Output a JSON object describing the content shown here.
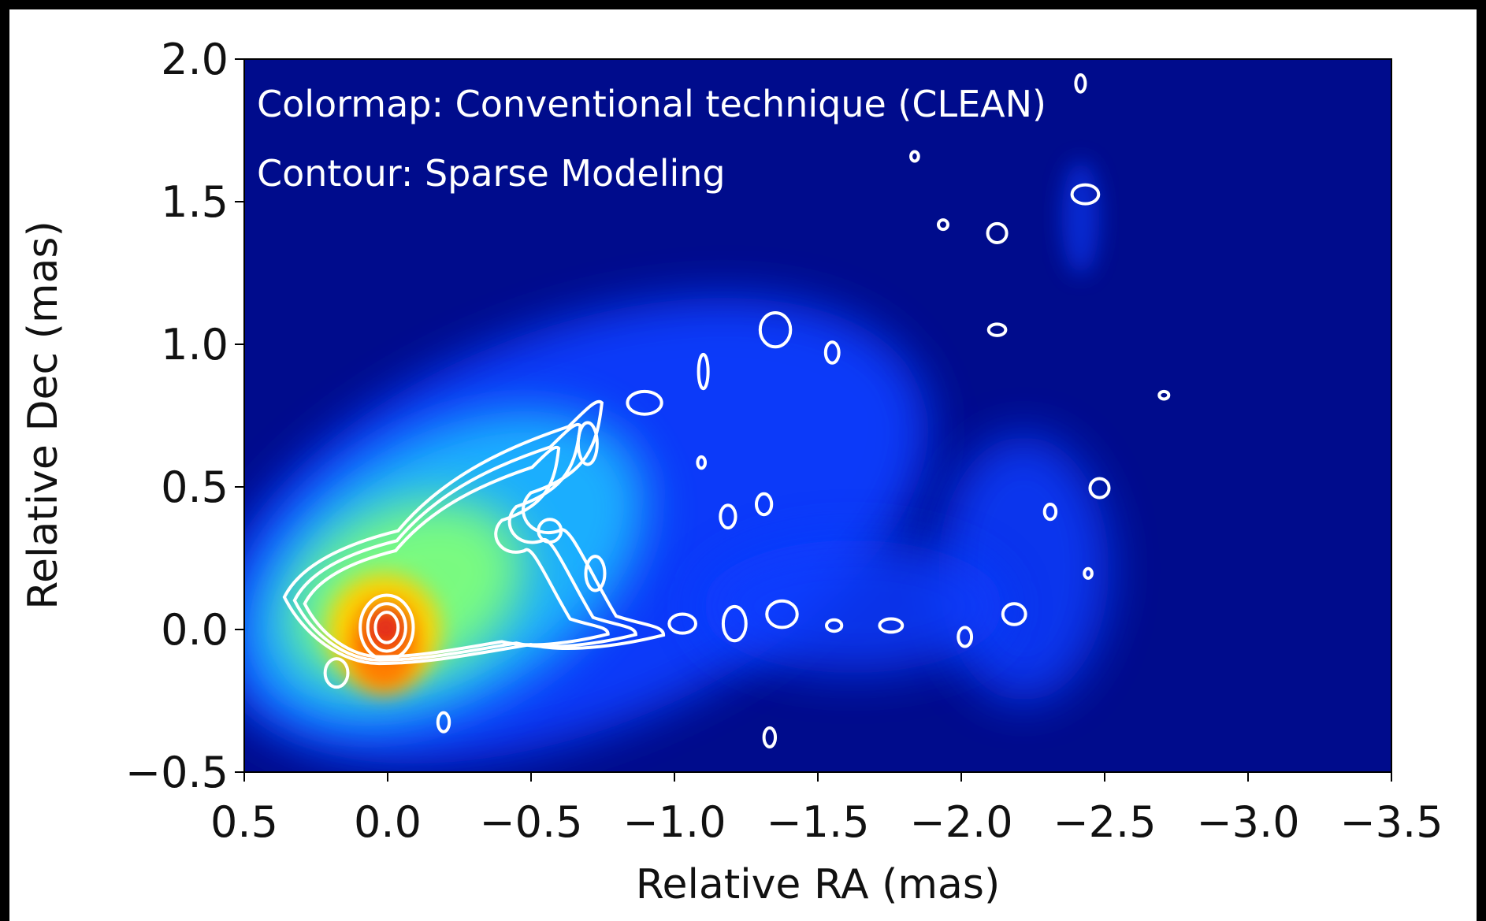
{
  "chart_data": {
    "type": "image",
    "annotations": [
      "Colormap: Conventional technique (CLEAN)",
      "Contour: Sparse Modeling"
    ],
    "x_label": "Relative RA (mas)",
    "y_label": "Relative Dec (mas)",
    "xlim": [
      0.5,
      -3.5
    ],
    "xticks": [
      0.5,
      {
        "value": 0,
        "label": "0.0"
      },
      {
        "value": -0.5,
        "label": "−0.5"
      },
      {
        "value": -1,
        "label": "−1.0"
      },
      {
        "value": -1.5,
        "label": "−1.5"
      },
      {
        "value": -2,
        "label": "−2.0"
      },
      {
        "value": -2.5,
        "label": "−2.5"
      },
      {
        "value": -3,
        "label": "−3.0"
      },
      {
        "value": -3.5,
        "label": "−3.5"
      }
    ],
    "ylim": [
      -0.5,
      2
    ],
    "yticks": [
      {
        "value": -0.5,
        "label": "−0.5"
      },
      {
        "value": 0,
        "label": "0.0"
      },
      0.5,
      {
        "value": 1,
        "label": "1.0"
      },
      1.5,
      {
        "value": 2,
        "label": "2.0"
      }
    ]
  }
}
